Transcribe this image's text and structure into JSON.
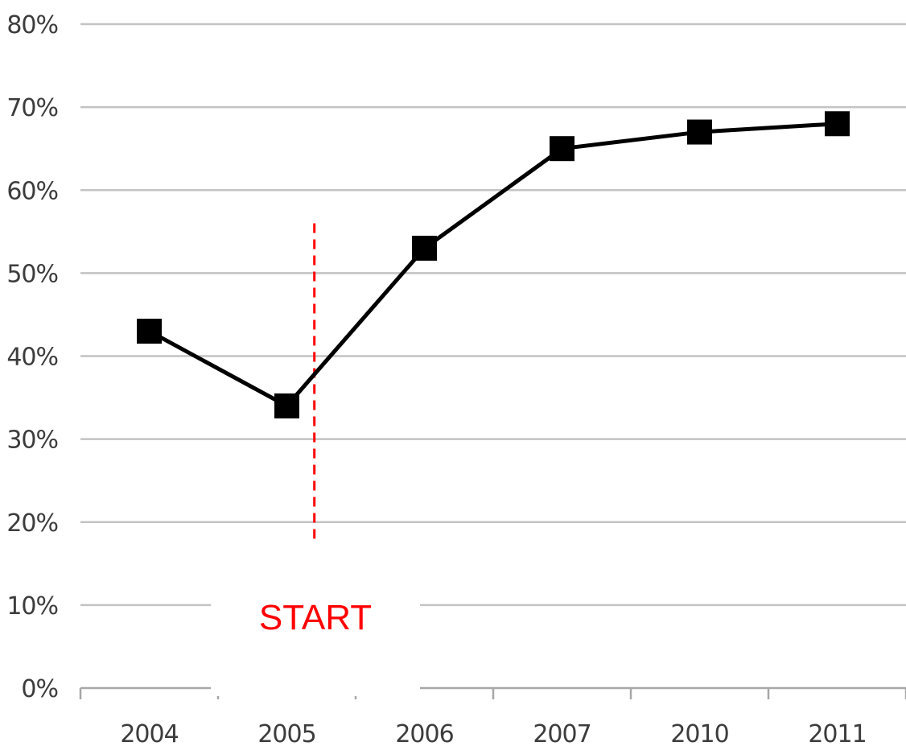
{
  "chart_data": {
    "type": "line",
    "categories": [
      "2004",
      "2005",
      "2006",
      "2007",
      "2010",
      "2011"
    ],
    "series": [
      {
        "values": [
          43,
          34,
          53,
          65,
          67,
          68
        ],
        "color": "#000000",
        "marker": "square"
      }
    ],
    "y_ticks": [
      "0%",
      "10%",
      "20%",
      "30%",
      "40%",
      "50%",
      "60%",
      "70%",
      "80%"
    ],
    "ylim": [
      0,
      80
    ],
    "y_unit": "%",
    "grid": true,
    "title": "",
    "xlabel": "",
    "ylabel": "",
    "annotations": [
      {
        "text": "START",
        "x_category_position": 1.2,
        "y_from": 18,
        "y_to": 56,
        "color": "#ff0000"
      }
    ]
  }
}
